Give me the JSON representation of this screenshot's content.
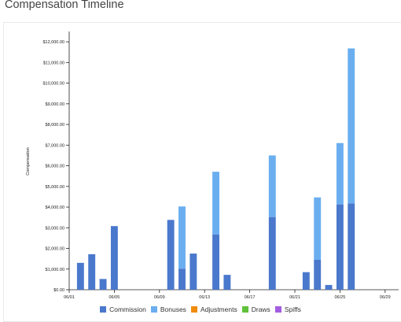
{
  "page": {
    "title": "Compensation Timeline"
  },
  "chart_data": {
    "type": "bar",
    "stacked": true,
    "ylabel": "Compensation",
    "xlabel": "",
    "ylim": [
      0,
      12500
    ],
    "xlim": [
      "06/01",
      "06/30"
    ],
    "grid": false,
    "legend_position": "bottom",
    "y_ticks": [
      "$0.00",
      "$1,000.00",
      "$2,000.00",
      "$3,000.00",
      "$4,000.00",
      "$5,000.00",
      "$6,000.00",
      "$7,000.00",
      "$8,000.00",
      "$9,000.00",
      "$10,000.00",
      "$11,000.00",
      "$12,000.00"
    ],
    "x_ticks": [
      "06/01",
      "06/05",
      "06/09",
      "06/13",
      "06/17",
      "06/21",
      "06/25",
      "06/29"
    ],
    "series": [
      {
        "name": "Commission",
        "color": "#4a78cc",
        "points": [
          [
            "06/02",
            1300
          ],
          [
            "06/03",
            1720
          ],
          [
            "06/04",
            520
          ],
          [
            "06/05",
            3080
          ],
          [
            "06/10",
            3380
          ],
          [
            "06/11",
            1020
          ],
          [
            "06/12",
            1750
          ],
          [
            "06/14",
            2680
          ],
          [
            "06/15",
            720
          ],
          [
            "06/19",
            3520
          ],
          [
            "06/22",
            850
          ],
          [
            "06/23",
            1450
          ],
          [
            "06/24",
            230
          ],
          [
            "06/25",
            4130
          ],
          [
            "06/26",
            4180
          ]
        ]
      },
      {
        "name": "Bonuses",
        "color": "#6aaef0",
        "points": [
          [
            "06/11",
            3010
          ],
          [
            "06/14",
            3030
          ],
          [
            "06/19",
            2980
          ],
          [
            "06/23",
            3020
          ],
          [
            "06/25",
            2970
          ],
          [
            "06/26",
            7500
          ]
        ]
      },
      {
        "name": "Adjustments",
        "color": "#f08c0c",
        "points": []
      },
      {
        "name": "Draws",
        "color": "#60c23a",
        "points": []
      },
      {
        "name": "Spiffs",
        "color": "#a45ce0",
        "points": []
      }
    ]
  }
}
